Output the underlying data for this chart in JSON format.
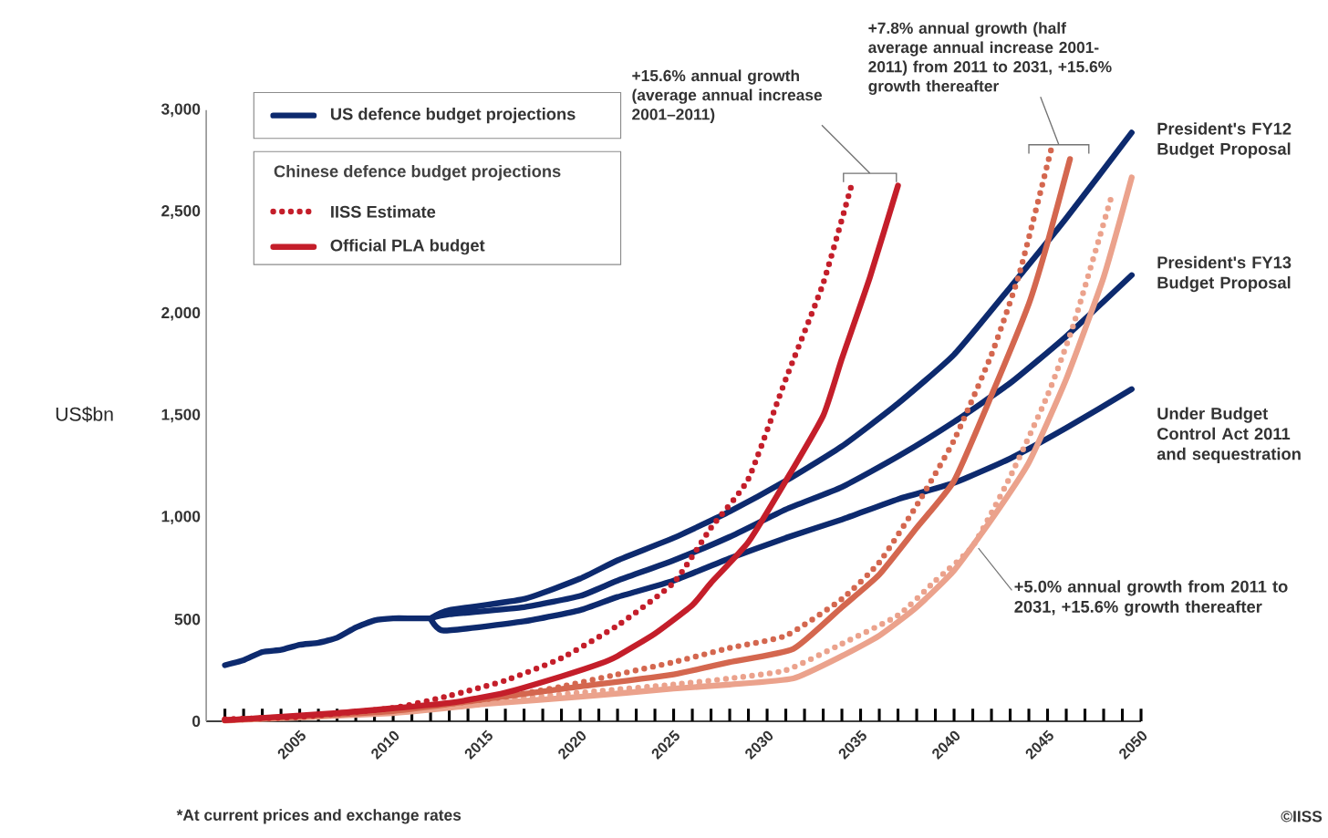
{
  "chart_data": {
    "type": "line",
    "ylabel": "US$bn",
    "legend_title": "Chinese defence budget projections",
    "legend": "top left",
    "marker": "none",
    "line_style": "solid",
    "xlim": [
      2000,
      2050
    ],
    "ylim": [
      0,
      3000
    ],
    "yticks": [
      0,
      500,
      {
        "value": 1000,
        "label": "1,000"
      },
      {
        "value": 1500,
        "label": "1,500"
      },
      {
        "value": 2000,
        "label": "2,000"
      },
      {
        "value": 2500,
        "label": "2,500"
      },
      {
        "value": 3000,
        "label": "3,000"
      }
    ],
    "xticks": [
      {
        "value": 2001,
        "label": null
      },
      {
        "value": 2002,
        "label": null
      },
      {
        "value": 2003,
        "label": null
      },
      {
        "value": 2004,
        "label": null
      },
      2005,
      {
        "value": 2006,
        "label": null
      },
      {
        "value": 2007,
        "label": null
      },
      {
        "value": 2008,
        "label": null
      },
      {
        "value": 2009,
        "label": null
      },
      2010,
      {
        "value": 2011,
        "label": null
      },
      {
        "value": 2012,
        "label": null
      },
      {
        "value": 2013,
        "label": null
      },
      {
        "value": 2014,
        "label": null
      },
      2015,
      {
        "value": 2016,
        "label": null
      },
      {
        "value": 2017,
        "label": null
      },
      {
        "value": 2018,
        "label": null
      },
      {
        "value": 2019,
        "label": null
      },
      2020,
      {
        "value": 2021,
        "label": null
      },
      {
        "value": 2022,
        "label": null
      },
      {
        "value": 2023,
        "label": null
      },
      {
        "value": 2024,
        "label": null
      },
      2025,
      {
        "value": 2026,
        "label": null
      },
      {
        "value": 2027,
        "label": null
      },
      {
        "value": 2028,
        "label": null
      },
      {
        "value": 2029,
        "label": null
      },
      2030,
      {
        "value": 2031,
        "label": null
      },
      {
        "value": 2032,
        "label": null
      },
      {
        "value": 2033,
        "label": null
      },
      {
        "value": 2034,
        "label": null
      },
      2035,
      {
        "value": 2036,
        "label": null
      },
      {
        "value": 2037,
        "label": null
      },
      {
        "value": 2038,
        "label": null
      },
      {
        "value": 2039,
        "label": null
      },
      2040,
      {
        "value": 2041,
        "label": null
      },
      {
        "value": 2042,
        "label": null
      },
      {
        "value": 2043,
        "label": null
      },
      {
        "value": 2044,
        "label": null
      },
      2045,
      {
        "value": 2046,
        "label": null
      },
      {
        "value": 2047,
        "label": null
      },
      {
        "value": 2048,
        "label": null
      },
      {
        "value": 2049,
        "label": null
      },
      2050
    ],
    "series": [
      {
        "name": "US defence budget projections",
        "color": "#0d2a6e",
        "x": [
          2001,
          2002,
          2003,
          2004,
          2005,
          2006,
          2007,
          2008,
          2009,
          2010,
          2011,
          2012
        ],
        "values": [
          275,
          300,
          340,
          350,
          375,
          385,
          410,
          460,
          495,
          505,
          505,
          505
        ]
      },
      {
        "name": "President's FY12 Budget Proposal",
        "color": "#0d2a6e",
        "x": [
          2012,
          2013,
          2017,
          2020,
          2022,
          2025,
          2028,
          2031,
          2034,
          2037,
          2040,
          2043,
          2046,
          2049.5
        ],
        "values": [
          505,
          545,
          600,
          700,
          790,
          900,
          1030,
          1180,
          1350,
          1560,
          1800,
          2130,
          2470,
          2890
        ]
      },
      {
        "name": "President's FY13 Budget Proposal",
        "color": "#0d2a6e",
        "x": [
          2012,
          2013,
          2017,
          2020,
          2022,
          2025,
          2028,
          2031,
          2034,
          2037,
          2040,
          2043,
          2046,
          2049.5
        ],
        "values": [
          505,
          525,
          560,
          615,
          690,
          790,
          905,
          1040,
          1150,
          1300,
          1470,
          1660,
          1890,
          2190
        ]
      },
      {
        "name": "Under Budget Control Act 2011 and sequestration",
        "color": "#0d2a6e",
        "x": [
          2012,
          2012.7,
          2017,
          2020,
          2022,
          2025,
          2028,
          2031,
          2034,
          2037,
          2040,
          2043,
          2046,
          2049.5
        ],
        "values": [
          505,
          445,
          490,
          545,
          610,
          690,
          800,
          900,
          990,
          1090,
          1170,
          1290,
          1440,
          1630
        ]
      },
      {
        "color": "#eba28c",
        "line_style": "dotted",
        "x": [
          2001,
          2010,
          2015,
          2020,
          2025,
          2028,
          2031,
          2034,
          2037,
          2039,
          2041,
          2043,
          2045,
          2046.4,
          2048.4
        ],
        "values": [
          5,
          50,
          95,
          140,
          180,
          210,
          250,
          380,
          520,
          690,
          860,
          1200,
          1600,
          1950,
          2570
        ]
      },
      {
        "color": "#eba28c",
        "x": [
          2001,
          2010,
          2015,
          2020,
          2025,
          2028,
          2031.4,
          2034,
          2036,
          2038,
          2040,
          2042,
          2044,
          2046,
          2048,
          2049.5
        ],
        "values": [
          3,
          40,
          85,
          120,
          160,
          180,
          210,
          320,
          420,
          560,
          740,
          990,
          1270,
          1680,
          2180,
          2670
        ]
      },
      {
        "color": "#d4674f",
        "line_style": "dotted",
        "x": [
          2001,
          2005,
          2010,
          2013,
          2016,
          2019,
          2022,
          2025,
          2028,
          2031,
          2034,
          2036,
          2038,
          2040,
          2042,
          2043.5,
          2045.2
        ],
        "values": [
          5,
          20,
          55,
          85,
          120,
          170,
          230,
          290,
          360,
          420,
          600,
          780,
          1060,
          1380,
          1800,
          2200,
          2810
        ]
      },
      {
        "color": "#d4674f",
        "x": [
          2001,
          2010,
          2015,
          2020,
          2025,
          2028,
          2031.4,
          2034,
          2036,
          2038,
          2040,
          2042,
          2044,
          2045,
          2046.2
        ],
        "values": [
          5,
          50,
          110,
          170,
          230,
          290,
          355,
          560,
          720,
          950,
          1180,
          1600,
          2050,
          2350,
          2760
        ]
      },
      {
        "name": "IISS Estimate",
        "color": "#c41e2a",
        "line_style": "dotted",
        "x": [
          2001,
          2005,
          2010,
          2013,
          2016,
          2019,
          2022,
          2025,
          2027,
          2029,
          2031,
          2033,
          2034.6
        ],
        "values": [
          10,
          22,
          65,
          125,
          200,
          310,
          470,
          680,
          950,
          1190,
          1680,
          2150,
          2660
        ]
      },
      {
        "name": "Official PLA budget",
        "color": "#c41e2a",
        "x": [
          2001,
          2007,
          2013,
          2016,
          2019,
          2021,
          2022,
          2024,
          2026,
          2027,
          2029,
          2031,
          2033,
          2034,
          2035.5,
          2037
        ],
        "values": [
          5,
          40,
          90,
          140,
          220,
          280,
          320,
          430,
          570,
          680,
          880,
          1180,
          1500,
          1780,
          2180,
          2630
        ]
      }
    ],
    "annotations": [
      "+15.6% annual growth (average annual increase 2001–2011)",
      "+7.8% annual growth (half average annual increase 2001-2011) from 2011 to 2031, +15.6% growth thereafter",
      {
        "text": "+5.0% annual growth from 2011 to 2031, +15.6% growth thereafter",
        "x": 2041.3,
        "y": 850
      },
      "*At current prices and exchange rates",
      "©IISS"
    ]
  }
}
